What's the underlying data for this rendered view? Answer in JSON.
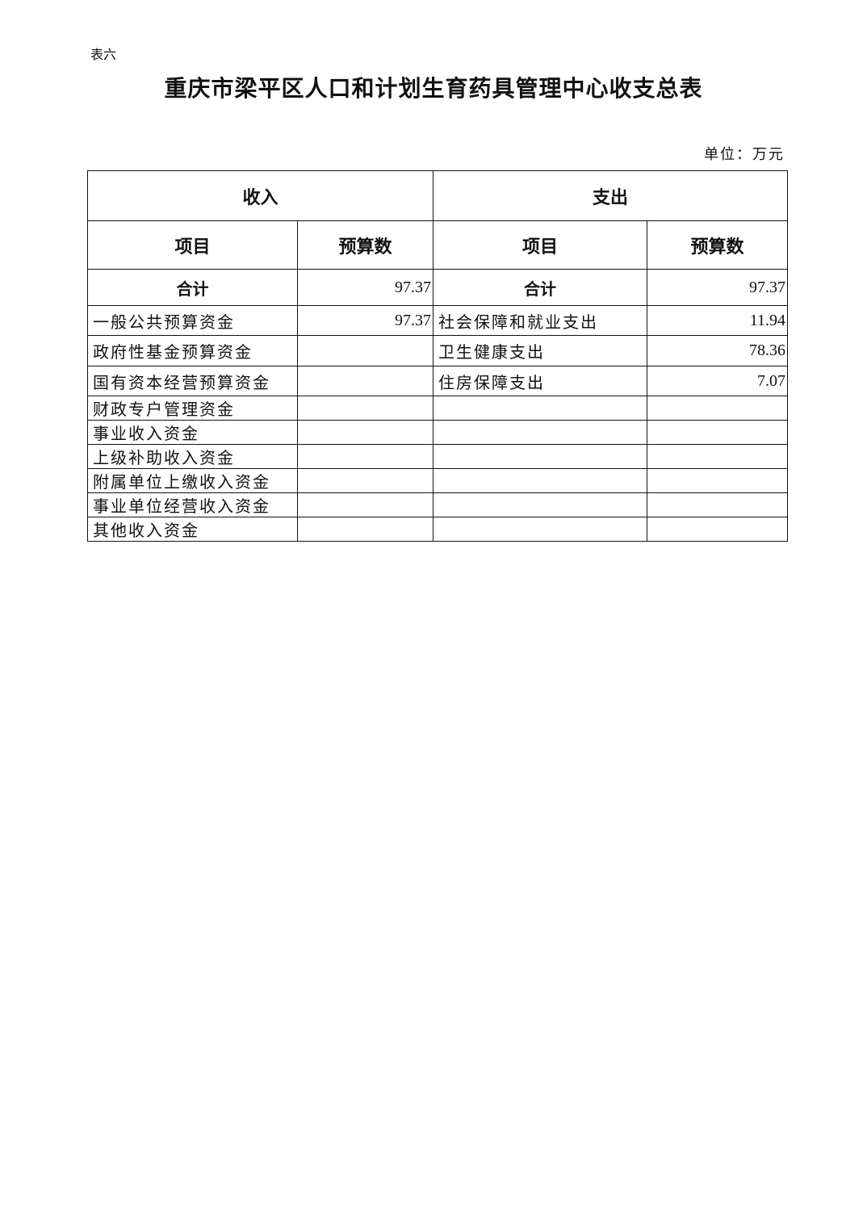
{
  "header": {
    "label": "表六",
    "title": "重庆市梁平区人口和计划生育药具管理中心收支总表",
    "unit": "单位：万元"
  },
  "table": {
    "groups": [
      "收入",
      "支出"
    ],
    "columns": [
      "项目",
      "预算数",
      "项目",
      "预算数"
    ],
    "rows": [
      [
        "合计",
        97.37,
        "合计",
        97.37
      ],
      [
        "一般公共预算资金",
        97.37,
        "社会保障和就业支出",
        11.94
      ],
      [
        "政府性基金预算资金",
        null,
        "卫生健康支出",
        78.36
      ],
      [
        "国有资本经营预算资金",
        null,
        "住房保障支出",
        7.07
      ],
      [
        "财政专户管理资金",
        null,
        null,
        null
      ],
      [
        "事业收入资金",
        null,
        null,
        null
      ],
      [
        "上级补助收入资金",
        null,
        null,
        null
      ],
      [
        "附属单位上缴收入资金",
        null,
        null,
        null
      ],
      [
        "事业单位经营收入资金",
        null,
        null,
        null
      ],
      [
        "其他收入资金",
        null,
        null,
        null
      ]
    ]
  }
}
